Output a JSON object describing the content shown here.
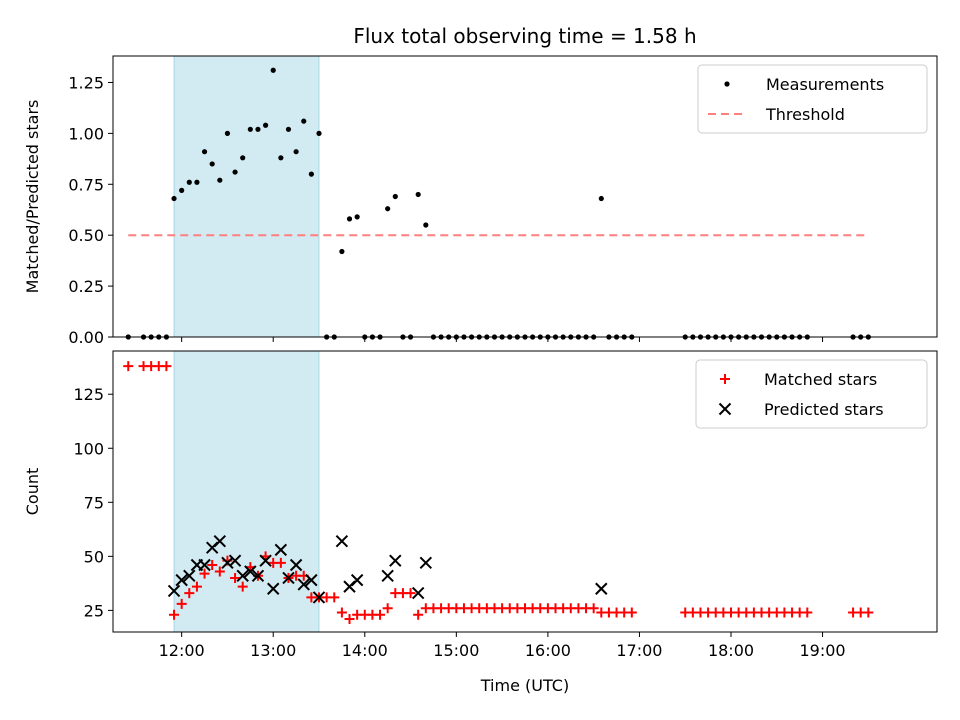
{
  "chart_data": [
    {
      "type": "scatter",
      "title": "Flux total observing time = 1.58 h",
      "xlabel": "",
      "ylabel": "Matched/Predicted stars",
      "xlim": [
        "11:15",
        "20:15"
      ],
      "ylim": [
        0,
        1.38
      ],
      "yticks": [
        "0.00",
        "0.25",
        "0.50",
        "0.75",
        "1.00",
        "1.25"
      ],
      "grid": false,
      "legend_position": "top-right",
      "highlight_span": {
        "start": "11:55",
        "end": "13:30",
        "color": "#add8e6"
      },
      "series": [
        {
          "name": "Measurements",
          "marker": "dot",
          "color": "#000000",
          "x": [
            "11:25",
            "11:35",
            "11:40",
            "11:45",
            "11:50",
            "11:55",
            "12:00",
            "12:05",
            "12:10",
            "12:15",
            "12:20",
            "12:25",
            "12:30",
            "12:35",
            "12:40",
            "12:45",
            "12:50",
            "12:55",
            "13:00",
            "13:05",
            "13:10",
            "13:15",
            "13:20",
            "13:25",
            "13:30",
            "13:35",
            "13:40",
            "13:45",
            "13:50",
            "13:55",
            "14:00",
            "14:05",
            "14:10",
            "14:15",
            "14:20",
            "14:25",
            "14:30",
            "14:35",
            "14:40",
            "14:45",
            "14:50",
            "14:55",
            "15:00",
            "15:05",
            "15:10",
            "15:15",
            "15:20",
            "15:25",
            "15:30",
            "15:35",
            "15:40",
            "15:45",
            "15:50",
            "15:55",
            "16:00",
            "16:05",
            "16:10",
            "16:15",
            "16:20",
            "16:25",
            "16:30",
            "16:35",
            "16:40",
            "16:45",
            "16:50",
            "16:55",
            "17:30",
            "17:35",
            "17:40",
            "17:45",
            "17:50",
            "17:55",
            "18:00",
            "18:05",
            "18:10",
            "18:15",
            "18:20",
            "18:25",
            "18:30",
            "18:35",
            "18:40",
            "18:45",
            "18:50",
            "19:20",
            "19:25",
            "19:30"
          ],
          "y": [
            0,
            0,
            0,
            0,
            0,
            0.68,
            0.72,
            0.76,
            0.76,
            0.91,
            0.85,
            0.77,
            1.0,
            0.81,
            0.88,
            1.02,
            1.02,
            1.04,
            1.31,
            0.88,
            1.02,
            0.91,
            1.06,
            0.8,
            1.0,
            0,
            0,
            0.42,
            0.58,
            0.59,
            0,
            0,
            0,
            0.63,
            0.69,
            0,
            0,
            0.7,
            0.55,
            0,
            0,
            0,
            0,
            0,
            0,
            0,
            0,
            0,
            0,
            0,
            0,
            0,
            0,
            0,
            0,
            0,
            0,
            0,
            0,
            0,
            0,
            0.68,
            0,
            0,
            0,
            0,
            0,
            0,
            0,
            0,
            0,
            0,
            0,
            0,
            0,
            0,
            0,
            0,
            0,
            0,
            0,
            0,
            0,
            0,
            0,
            0
          ]
        },
        {
          "name": "Threshold",
          "style": "dashed",
          "color": "#ff7f7f",
          "x": [
            "11:25",
            "19:30"
          ],
          "y": [
            0.5,
            0.5
          ]
        }
      ]
    },
    {
      "type": "scatter",
      "title": "",
      "xlabel": "Time (UTC)",
      "ylabel": "Count",
      "xlim": [
        "11:15",
        "20:15"
      ],
      "ylim": [
        15,
        145
      ],
      "yticks": [
        "25",
        "50",
        "75",
        "100",
        "125"
      ],
      "xticks": [
        "12:00",
        "13:00",
        "14:00",
        "15:00",
        "16:00",
        "17:00",
        "18:00",
        "19:00"
      ],
      "grid": false,
      "legend_position": "top-right",
      "highlight_span": {
        "start": "11:55",
        "end": "13:30",
        "color": "#add8e6"
      },
      "series": [
        {
          "name": "Matched stars",
          "marker": "plus",
          "color": "#ff0000",
          "x": [
            "11:25",
            "11:35",
            "11:40",
            "11:45",
            "11:50",
            "11:55",
            "12:00",
            "12:05",
            "12:10",
            "12:15",
            "12:20",
            "12:25",
            "12:30",
            "12:35",
            "12:40",
            "12:45",
            "12:50",
            "12:55",
            "13:00",
            "13:05",
            "13:10",
            "13:15",
            "13:20",
            "13:25",
            "13:30",
            "13:35",
            "13:40",
            "13:45",
            "13:50",
            "13:55",
            "14:00",
            "14:05",
            "14:10",
            "14:15",
            "14:20",
            "14:25",
            "14:30",
            "14:35",
            "14:40",
            "14:45",
            "14:50",
            "14:55",
            "15:00",
            "15:05",
            "15:10",
            "15:15",
            "15:20",
            "15:25",
            "15:30",
            "15:35",
            "15:40",
            "15:45",
            "15:50",
            "15:55",
            "16:00",
            "16:05",
            "16:10",
            "16:15",
            "16:20",
            "16:25",
            "16:30",
            "16:35",
            "16:40",
            "16:45",
            "16:50",
            "16:55",
            "17:30",
            "17:35",
            "17:40",
            "17:45",
            "17:50",
            "17:55",
            "18:00",
            "18:05",
            "18:10",
            "18:15",
            "18:20",
            "18:25",
            "18:30",
            "18:35",
            "18:40",
            "18:45",
            "18:50",
            "19:20",
            "19:25",
            "19:30"
          ],
          "y": [
            138,
            138,
            138,
            138,
            138,
            23,
            28,
            33,
            36,
            42,
            46,
            43,
            48,
            40,
            36,
            45,
            41,
            50,
            47,
            47,
            40,
            41,
            41,
            31,
            31,
            31,
            31,
            24,
            21,
            23,
            23,
            23,
            23,
            26,
            33,
            33,
            33,
            23,
            26,
            26,
            26,
            26,
            26,
            26,
            26,
            26,
            26,
            26,
            26,
            26,
            26,
            26,
            26,
            26,
            26,
            26,
            26,
            26,
            26,
            26,
            26,
            24,
            24,
            24,
            24,
            24,
            24,
            24,
            24,
            24,
            24,
            24,
            24,
            24,
            24,
            24,
            24,
            24,
            24,
            24,
            24,
            24,
            24,
            24,
            24,
            24
          ]
        },
        {
          "name": "Predicted stars",
          "marker": "x",
          "color": "#000000",
          "x": [
            "11:55",
            "12:00",
            "12:05",
            "12:10",
            "12:15",
            "12:20",
            "12:25",
            "12:30",
            "12:35",
            "12:40",
            "12:45",
            "12:50",
            "12:55",
            "13:00",
            "13:05",
            "13:10",
            "13:15",
            "13:20",
            "13:25",
            "13:30",
            "13:45",
            "13:50",
            "13:55",
            "14:15",
            "14:20",
            "14:35",
            "14:40",
            "16:35"
          ],
          "y": [
            34,
            39,
            41,
            46,
            46,
            54,
            57,
            47,
            48,
            41,
            43,
            41,
            48,
            35,
            53,
            40,
            46,
            37,
            39,
            31,
            57,
            36,
            39,
            41,
            48,
            33,
            47,
            35
          ]
        }
      ]
    }
  ]
}
